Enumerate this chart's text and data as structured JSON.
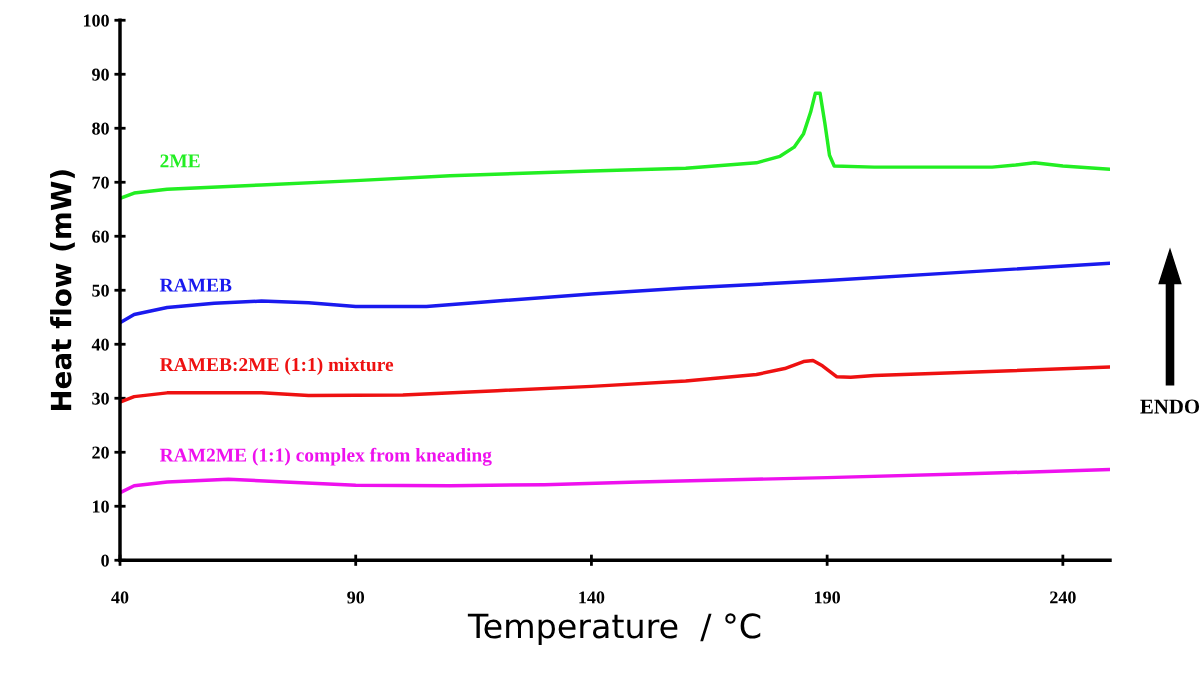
{
  "chart_data": {
    "type": "line",
    "xlabel": "Temperature  / °C",
    "ylabel": "Heat flow (mW)",
    "xlim": [
      40,
      250
    ],
    "xticks": [
      40,
      90,
      140,
      190,
      240
    ],
    "ylim": [
      0,
      100
    ],
    "yticks": [
      0,
      10,
      20,
      30,
      40,
      50,
      60,
      70,
      80,
      90,
      100
    ],
    "grid": false,
    "legend": false,
    "annotations": [
      "ENDO"
    ],
    "series": [
      {
        "name": "2ME",
        "color": "#22ee22",
        "x": [
          40,
          43,
          50,
          70,
          90,
          110,
          140,
          160,
          175,
          180,
          183,
          185,
          186.5,
          187.5,
          188.5,
          189.5,
          190.5,
          191.5,
          200,
          225,
          230,
          234,
          240,
          250
        ],
        "values": [
          67,
          68,
          68.7,
          69.5,
          70.3,
          71.2,
          72.1,
          72.6,
          73.6,
          74.8,
          76.5,
          79,
          83,
          86.5,
          86.5,
          81,
          75,
          73,
          72.8,
          72.8,
          73.2,
          73.6,
          73,
          72.4
        ]
      },
      {
        "name": "RAMEB",
        "color": "#1a1aee",
        "x": [
          40,
          43,
          50,
          60,
          70,
          80,
          90,
          105,
          120,
          140,
          160,
          190,
          220,
          250
        ],
        "values": [
          44,
          45.5,
          46.8,
          47.6,
          48,
          47.7,
          47,
          47,
          48,
          49.3,
          50.4,
          51.8,
          53.4,
          55
        ]
      },
      {
        "name": "RAMEB:2ME (1:1) mixture",
        "color": "#ee1111",
        "x": [
          40,
          43,
          50,
          70,
          80,
          100,
          120,
          140,
          160,
          175,
          181,
          185,
          187,
          189,
          192,
          195,
          200,
          220,
          250
        ],
        "values": [
          29.3,
          30.3,
          31,
          31,
          30.5,
          30.6,
          31.4,
          32.2,
          33.2,
          34.4,
          35.5,
          36.8,
          37,
          36,
          34,
          33.9,
          34.2,
          34.8,
          35.8
        ]
      },
      {
        "name": "RAM2ME (1:1) complex from kneading",
        "color": "#ee11ee",
        "x": [
          40,
          43,
          50,
          63,
          75,
          90,
          110,
          130,
          150,
          170,
          190,
          220,
          250
        ],
        "values": [
          12.5,
          13.8,
          14.5,
          15,
          14.5,
          13.9,
          13.8,
          14,
          14.5,
          14.9,
          15.3,
          16,
          16.8
        ]
      }
    ]
  }
}
